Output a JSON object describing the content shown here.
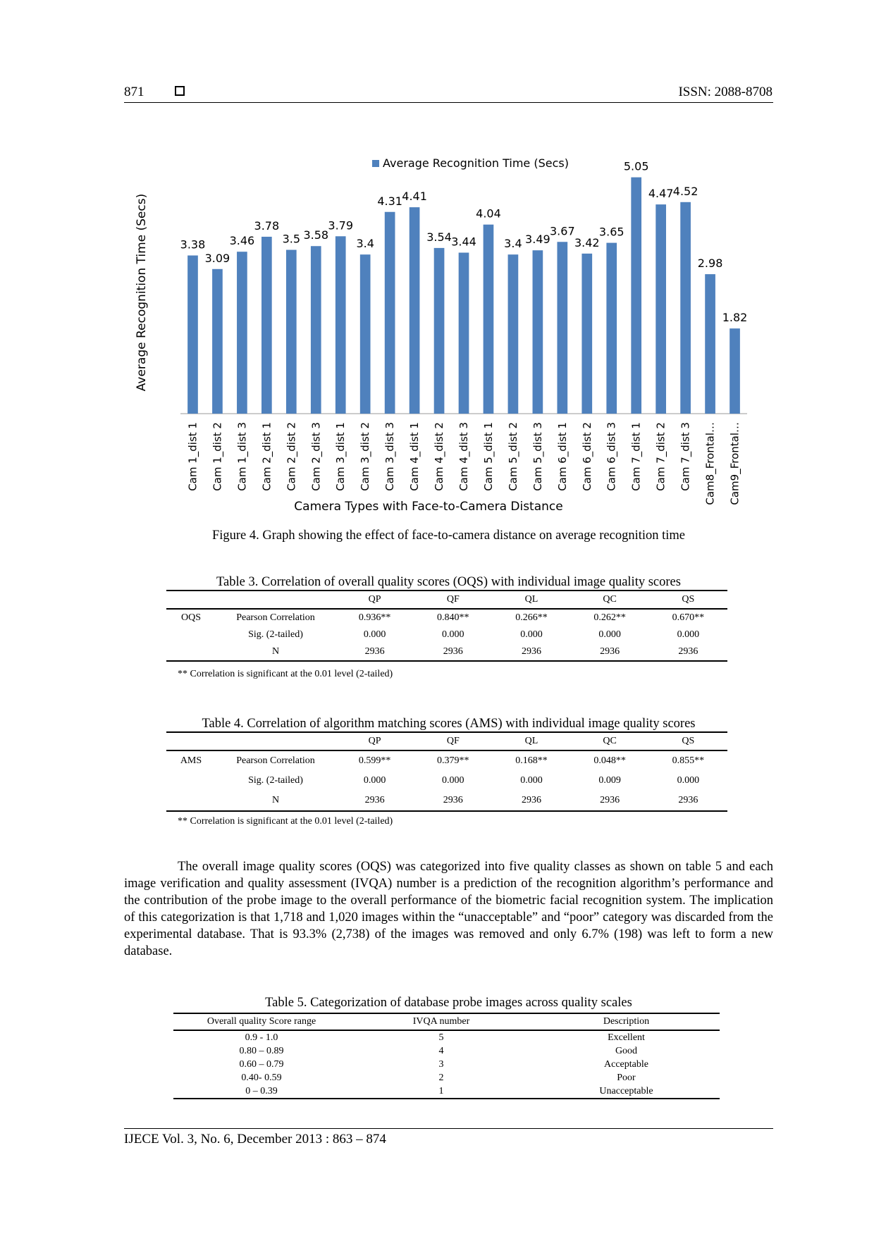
{
  "header": {
    "page_number": "871",
    "issn": "ISSN: 2088-8708"
  },
  "figure": {
    "caption": "Figure 4. Graph showing the effect of face-to-camera distance on average recognition time"
  },
  "chart_data": {
    "type": "bar",
    "title": "",
    "legend": {
      "label": "Average Recognition Time (Secs)",
      "position": "top"
    },
    "xlabel": "Camera Types with Face-to-Camera Distance",
    "ylabel": "Average Recognition Time (Secs)",
    "ylim": [
      0,
      5.3
    ],
    "grid": false,
    "bar_color": "#4F81BD",
    "categories": [
      "Cam 1_dist 1",
      "Cam 1_dist 2",
      "Cam 1_dist 3",
      "Cam 2_dist 1",
      "Cam 2_dist 2",
      "Cam 2_dist 3",
      "Cam 3_dist 1",
      "Cam 3_dist 2",
      "Cam 3_dist 3",
      "Cam 4_dist 1",
      "Cam 4_dist 2",
      "Cam 4_dist 3",
      "Cam 5_dist 1",
      "Cam 5_dist 2",
      "Cam 5_dist 3",
      "Cam 6_dist 1",
      "Cam 6_dist 2",
      "Cam 6_dist 3",
      "Cam 7_dist 1",
      "Cam 7_dist 2",
      "Cam 7_dist 3",
      "Cam8_Frontal…",
      "Cam9_Frontal…"
    ],
    "values": [
      3.38,
      3.09,
      3.46,
      3.78,
      3.5,
      3.58,
      3.79,
      3.4,
      4.31,
      4.41,
      3.54,
      3.44,
      4.04,
      3.4,
      3.49,
      3.67,
      3.42,
      3.65,
      5.05,
      4.47,
      4.52,
      2.98,
      1.82
    ],
    "value_labels": [
      "3.38",
      "3.09",
      "3.46",
      "3.78",
      "3.5",
      "3.58",
      "3.79",
      "3.4",
      "4.31",
      "4.41",
      "3.54",
      "3.44",
      "4.04",
      "3.4",
      "3.49",
      "3.67",
      "3.42",
      "3.65",
      "5.05",
      "4.47",
      "4.52",
      "2.98",
      "1.82"
    ]
  },
  "table3": {
    "caption": "Table 3. Correlation of overall quality scores (OQS) with individual image quality scores",
    "columns": [
      "QP",
      "QF",
      "QL",
      "QC",
      "QS"
    ],
    "group": "OQS",
    "rows": [
      {
        "label": "Pearson Correlation",
        "values": [
          "0.936**",
          "0.840**",
          "0.266**",
          "0.262**",
          "0.670**"
        ]
      },
      {
        "label": "Sig. (2-tailed)",
        "values": [
          "0.000",
          "0.000",
          "0.000",
          "0.000",
          "0.000"
        ]
      },
      {
        "label": "N",
        "values": [
          "2936",
          "2936",
          "2936",
          "2936",
          "2936"
        ]
      }
    ],
    "note": "** Correlation is significant at the 0.01 level (2-tailed)"
  },
  "table4": {
    "caption": "Table 4. Correlation of algorithm matching scores (AMS) with individual image quality scores",
    "columns": [
      "QP",
      "QF",
      "QL",
      "QC",
      "QS"
    ],
    "group": "AMS",
    "rows": [
      {
        "label": "Pearson Correlation",
        "values": [
          "0.599**",
          "0.379**",
          "0.168**",
          "0.048**",
          "0.855**"
        ]
      },
      {
        "label": "Sig. (2-tailed)",
        "values": [
          "0.000",
          "0.000",
          "0.000",
          "0.009",
          "0.000"
        ]
      },
      {
        "label": "N",
        "values": [
          "2936",
          "2936",
          "2936",
          "2936",
          "2936"
        ]
      }
    ],
    "note": "** Correlation is significant at the 0.01 level (2-tailed)"
  },
  "paragraph": "The overall image quality scores (OQS) was categorized into five quality classes as shown on table 5 and each image verification and quality assessment (IVQA) number is a prediction of the recognition algorithm’s performance and the contribution of the probe image to the overall performance of the biometric facial recognition system. The implication of this categorization is that 1,718 and 1,020 images within the “unacceptable” and “poor” category was discarded from the experimental database. That is 93.3% (2,738) of the images was removed and only 6.7% (198) was left to form a new database.",
  "table5": {
    "caption": "Table 5. Categorization of database probe images across quality scales",
    "headers": [
      "Overall quality Score range",
      "IVQA number",
      "Description"
    ],
    "rows": [
      [
        "0.9 - 1.0",
        "5",
        "Excellent"
      ],
      [
        "0.80 – 0.89",
        "4",
        "Good"
      ],
      [
        "0.60 – 0.79",
        "3",
        "Acceptable"
      ],
      [
        "0.40- 0.59",
        "2",
        "Poor"
      ],
      [
        "0 – 0.39",
        "1",
        "Unacceptable"
      ]
    ]
  },
  "footer": {
    "text": "IJECE Vol. 3, No. 6, December 2013 :  863 – 874"
  }
}
